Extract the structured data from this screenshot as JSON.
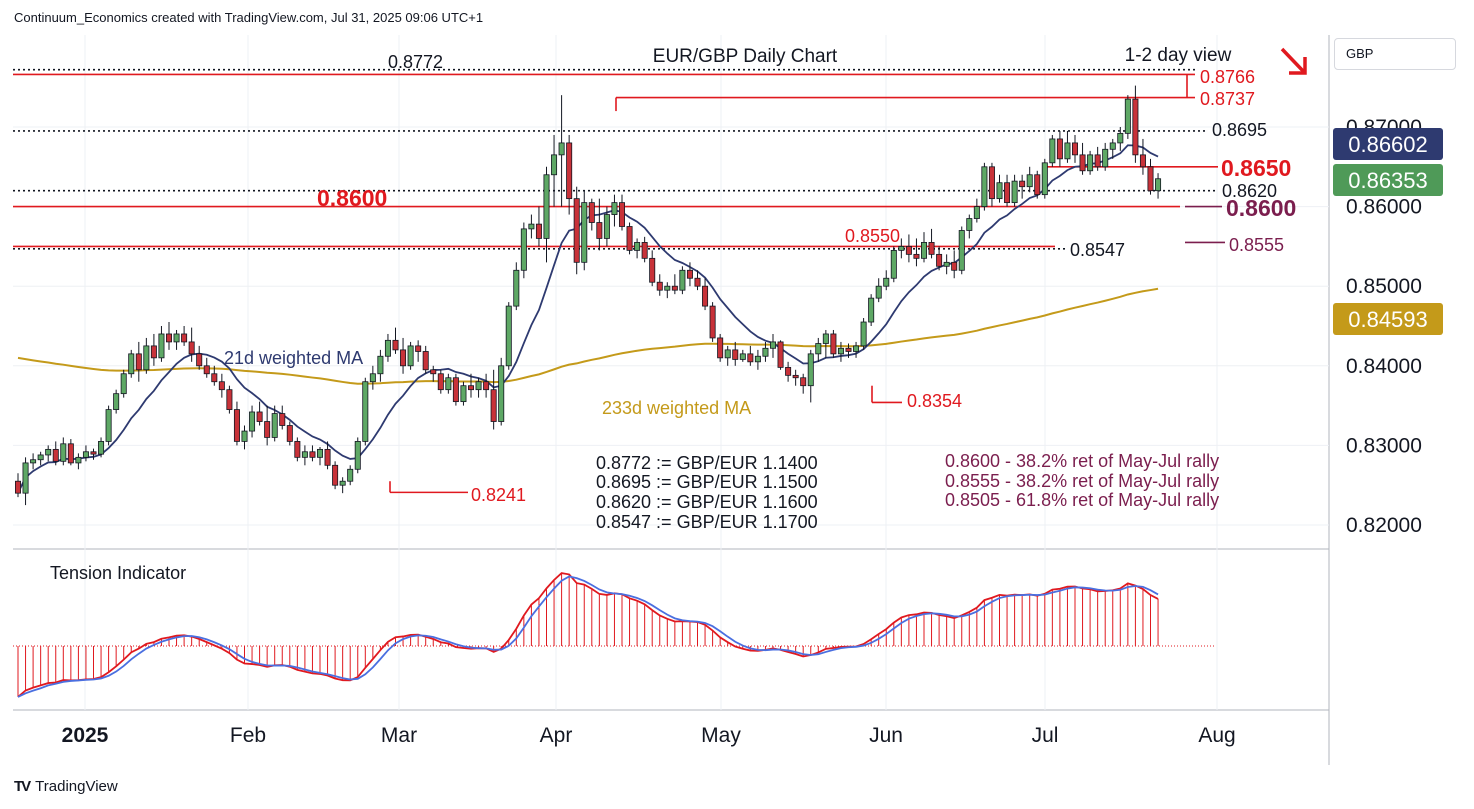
{
  "header": {
    "text": "Continuum_Economics created with TradingView.com, Jul 31, 2025 09:06 UTC+1"
  },
  "footer": {
    "logo": "TV",
    "brand": "TradingView"
  },
  "currency_label": "GBP",
  "chart_data": {
    "type": "candlestick",
    "title": "EUR/GBP Daily Chart",
    "subtitle": "1-2 day view",
    "view_direction": "down",
    "x_tick_labels": [
      "2025",
      "Feb",
      "Mar",
      "Apr",
      "May",
      "Jun",
      "Jul",
      "Aug"
    ],
    "y_tick_labels": [
      "0.87000",
      "0.86000",
      "0.85000",
      "0.84000",
      "0.83000",
      "0.82000"
    ],
    "ylim": [
      0.8175,
      0.879
    ],
    "price_badges": [
      {
        "value": "0.86602",
        "color": "#2e3a70"
      },
      {
        "value": "0.86353",
        "color": "#4f9a58"
      },
      {
        "value": "0.84593",
        "color": "#c49a1a"
      }
    ],
    "horizontal_levels": [
      {
        "value": 0.8772,
        "label": "0.8772",
        "style": "dotted",
        "color": "#131722"
      },
      {
        "value": 0.8766,
        "label": "0.8766",
        "style": "solid",
        "color": "#e0191f"
      },
      {
        "value": 0.8737,
        "label": "0.8737",
        "style": "solid",
        "color": "#e0191f"
      },
      {
        "value": 0.8695,
        "label": "0.8695",
        "style": "dotted",
        "color": "#131722"
      },
      {
        "value": 0.865,
        "label": "0.8650",
        "style": "solid",
        "color": "#e0191f"
      },
      {
        "value": 0.862,
        "label": "0.8620",
        "style": "dotted",
        "color": "#131722"
      },
      {
        "value": 0.86,
        "label": "0.8600",
        "style": "solid",
        "color": "#e0191f"
      },
      {
        "value": 0.855,
        "label": "0.8550",
        "style": "solid",
        "color": "#e0191f"
      },
      {
        "value": 0.8547,
        "label": "0.8547",
        "style": "dotted",
        "color": "#131722"
      },
      {
        "value": 0.8555,
        "label": "0.8555",
        "style": "solid",
        "color": "#7b1e4e"
      },
      {
        "value": 0.8354,
        "label": "0.8354",
        "style": "solid",
        "color": "#e0191f"
      },
      {
        "value": 0.8241,
        "label": "0.8241",
        "style": "solid",
        "color": "#e0191f"
      }
    ],
    "series": [
      {
        "name": "21d weighted MA",
        "color": "#2e3a70"
      },
      {
        "name": "233d weighted MA",
        "color": "#c49a1a"
      }
    ],
    "conversion_notes": [
      "0.8772 := GBP/EUR 1.1400",
      "0.8695 := GBP/EUR 1.1500",
      "0.8620 := GBP/EUR 1.1600",
      "0.8547 := GBP/EUR 1.1700"
    ],
    "retracement_notes": [
      "0.8600 - 38.2% ret of May-Jul rally",
      "0.8555 - 38.2% ret of May-Jul rally",
      "0.8505 - 61.8% ret of May-Jul rally"
    ],
    "indicator": {
      "name": "Tension Indicator"
    },
    "candles": [
      [
        0.8255,
        0.8265,
        0.8235,
        0.824
      ],
      [
        0.824,
        0.8285,
        0.8225,
        0.8278
      ],
      [
        0.8278,
        0.829,
        0.827,
        0.8282
      ],
      [
        0.8282,
        0.8292,
        0.8275,
        0.8288
      ],
      [
        0.8288,
        0.83,
        0.828,
        0.8295
      ],
      [
        0.8295,
        0.8305,
        0.8275,
        0.828
      ],
      [
        0.828,
        0.831,
        0.8275,
        0.8302
      ],
      [
        0.8302,
        0.8308,
        0.8275,
        0.8278
      ],
      [
        0.8278,
        0.829,
        0.827,
        0.8285
      ],
      [
        0.8285,
        0.83,
        0.828,
        0.8292
      ],
      [
        0.8292,
        0.8296,
        0.8282,
        0.8289
      ],
      [
        0.8289,
        0.831,
        0.8285,
        0.8305
      ],
      [
        0.8305,
        0.835,
        0.83,
        0.8345
      ],
      [
        0.8345,
        0.837,
        0.834,
        0.8365
      ],
      [
        0.8365,
        0.8395,
        0.836,
        0.839
      ],
      [
        0.839,
        0.842,
        0.8385,
        0.8415
      ],
      [
        0.8415,
        0.843,
        0.838,
        0.8395
      ],
      [
        0.8395,
        0.8435,
        0.839,
        0.8425
      ],
      [
        0.8425,
        0.844,
        0.84,
        0.841
      ],
      [
        0.841,
        0.845,
        0.8405,
        0.844
      ],
      [
        0.844,
        0.8455,
        0.842,
        0.843
      ],
      [
        0.843,
        0.8445,
        0.842,
        0.844
      ],
      [
        0.844,
        0.845,
        0.8425,
        0.843
      ],
      [
        0.843,
        0.8448,
        0.8405,
        0.8415
      ],
      [
        0.8415,
        0.8425,
        0.8395,
        0.84
      ],
      [
        0.84,
        0.841,
        0.8385,
        0.839
      ],
      [
        0.839,
        0.84,
        0.8375,
        0.838
      ],
      [
        0.838,
        0.839,
        0.836,
        0.837
      ],
      [
        0.837,
        0.8375,
        0.834,
        0.8345
      ],
      [
        0.8345,
        0.8355,
        0.83,
        0.8305
      ],
      [
        0.8305,
        0.8325,
        0.8295,
        0.8318
      ],
      [
        0.8318,
        0.835,
        0.831,
        0.8342
      ],
      [
        0.8342,
        0.8355,
        0.8325,
        0.833
      ],
      [
        0.833,
        0.835,
        0.83,
        0.831
      ],
      [
        0.831,
        0.835,
        0.8305,
        0.834
      ],
      [
        0.834,
        0.835,
        0.832,
        0.8325
      ],
      [
        0.8325,
        0.833,
        0.83,
        0.8305
      ],
      [
        0.8305,
        0.831,
        0.828,
        0.8285
      ],
      [
        0.8285,
        0.83,
        0.8275,
        0.8292
      ],
      [
        0.8292,
        0.83,
        0.828,
        0.8285
      ],
      [
        0.8285,
        0.8298,
        0.8275,
        0.8295
      ],
      [
        0.8295,
        0.8305,
        0.827,
        0.8275
      ],
      [
        0.8275,
        0.828,
        0.8245,
        0.825
      ],
      [
        0.825,
        0.826,
        0.824,
        0.8255
      ],
      [
        0.8255,
        0.8275,
        0.825,
        0.827
      ],
      [
        0.827,
        0.831,
        0.8265,
        0.8305
      ],
      [
        0.8305,
        0.8385,
        0.83,
        0.838
      ],
      [
        0.838,
        0.84,
        0.837,
        0.839
      ],
      [
        0.839,
        0.842,
        0.838,
        0.8412
      ],
      [
        0.8412,
        0.844,
        0.8405,
        0.8432
      ],
      [
        0.8432,
        0.8448,
        0.8415,
        0.842
      ],
      [
        0.842,
        0.8435,
        0.839,
        0.84
      ],
      [
        0.84,
        0.843,
        0.8395,
        0.8425
      ],
      [
        0.8425,
        0.8432,
        0.8405,
        0.8418
      ],
      [
        0.8418,
        0.8425,
        0.839,
        0.8395
      ],
      [
        0.8395,
        0.84,
        0.838,
        0.839
      ],
      [
        0.839,
        0.8395,
        0.8365,
        0.837
      ],
      [
        0.837,
        0.839,
        0.8365,
        0.8385
      ],
      [
        0.8385,
        0.839,
        0.835,
        0.8355
      ],
      [
        0.8355,
        0.838,
        0.835,
        0.8375
      ],
      [
        0.8375,
        0.839,
        0.836,
        0.837
      ],
      [
        0.837,
        0.8385,
        0.836,
        0.838
      ],
      [
        0.838,
        0.839,
        0.836,
        0.837
      ],
      [
        0.837,
        0.8395,
        0.832,
        0.833
      ],
      [
        0.833,
        0.841,
        0.8325,
        0.84
      ],
      [
        0.84,
        0.848,
        0.8395,
        0.8475
      ],
      [
        0.8475,
        0.853,
        0.847,
        0.852
      ],
      [
        0.852,
        0.858,
        0.851,
        0.8572
      ],
      [
        0.8572,
        0.859,
        0.856,
        0.8578
      ],
      [
        0.8578,
        0.86,
        0.855,
        0.856
      ],
      [
        0.856,
        0.865,
        0.853,
        0.864
      ],
      [
        0.864,
        0.869,
        0.86,
        0.8665
      ],
      [
        0.8665,
        0.874,
        0.86,
        0.868
      ],
      [
        0.868,
        0.869,
        0.859,
        0.861
      ],
      [
        0.861,
        0.8625,
        0.8515,
        0.853
      ],
      [
        0.853,
        0.862,
        0.852,
        0.8605
      ],
      [
        0.8605,
        0.861,
        0.857,
        0.858
      ],
      [
        0.858,
        0.861,
        0.8545,
        0.856
      ],
      [
        0.856,
        0.86,
        0.855,
        0.859
      ],
      [
        0.859,
        0.8615,
        0.8575,
        0.8605
      ],
      [
        0.8605,
        0.8615,
        0.857,
        0.8575
      ],
      [
        0.8575,
        0.858,
        0.854,
        0.8545
      ],
      [
        0.8545,
        0.856,
        0.8535,
        0.8555
      ],
      [
        0.8555,
        0.8562,
        0.853,
        0.8535
      ],
      [
        0.8535,
        0.8545,
        0.85,
        0.8505
      ],
      [
        0.8505,
        0.8515,
        0.8488,
        0.8495
      ],
      [
        0.8495,
        0.8505,
        0.8485,
        0.85
      ],
      [
        0.85,
        0.8515,
        0.849,
        0.8495
      ],
      [
        0.8495,
        0.8525,
        0.849,
        0.852
      ],
      [
        0.852,
        0.853,
        0.85,
        0.851
      ],
      [
        0.851,
        0.852,
        0.8495,
        0.85
      ],
      [
        0.85,
        0.851,
        0.847,
        0.8475
      ],
      [
        0.8475,
        0.848,
        0.843,
        0.8435
      ],
      [
        0.8435,
        0.844,
        0.8405,
        0.841
      ],
      [
        0.841,
        0.8425,
        0.84,
        0.842
      ],
      [
        0.842,
        0.843,
        0.84,
        0.8408
      ],
      [
        0.8408,
        0.842,
        0.8405,
        0.8415
      ],
      [
        0.8415,
        0.8425,
        0.84,
        0.8405
      ],
      [
        0.8405,
        0.842,
        0.8395,
        0.8412
      ],
      [
        0.8412,
        0.843,
        0.8405,
        0.8422
      ],
      [
        0.8422,
        0.844,
        0.841,
        0.843
      ],
      [
        0.843,
        0.8432,
        0.8395,
        0.8398
      ],
      [
        0.8398,
        0.8405,
        0.838,
        0.8388
      ],
      [
        0.8388,
        0.8395,
        0.8375,
        0.8385
      ],
      [
        0.8385,
        0.839,
        0.8365,
        0.8375
      ],
      [
        0.8375,
        0.842,
        0.8354,
        0.8415
      ],
      [
        0.8415,
        0.8435,
        0.8405,
        0.8428
      ],
      [
        0.8428,
        0.8445,
        0.841,
        0.844
      ],
      [
        0.844,
        0.8445,
        0.841,
        0.8415
      ],
      [
        0.8415,
        0.843,
        0.8405,
        0.8422
      ],
      [
        0.8422,
        0.8428,
        0.841,
        0.8418
      ],
      [
        0.8418,
        0.843,
        0.841,
        0.8425
      ],
      [
        0.8425,
        0.846,
        0.842,
        0.8455
      ],
      [
        0.8455,
        0.849,
        0.845,
        0.8485
      ],
      [
        0.8485,
        0.851,
        0.848,
        0.85
      ],
      [
        0.85,
        0.852,
        0.8495,
        0.851
      ],
      [
        0.851,
        0.855,
        0.8505,
        0.8545
      ],
      [
        0.8545,
        0.856,
        0.8535,
        0.855
      ],
      [
        0.855,
        0.8565,
        0.853,
        0.854
      ],
      [
        0.854,
        0.856,
        0.8525,
        0.8535
      ],
      [
        0.8535,
        0.8568,
        0.853,
        0.8555
      ],
      [
        0.8555,
        0.8572,
        0.8535,
        0.854
      ],
      [
        0.854,
        0.855,
        0.852,
        0.8525
      ],
      [
        0.8525,
        0.854,
        0.8515,
        0.853
      ],
      [
        0.853,
        0.8545,
        0.851,
        0.852
      ],
      [
        0.852,
        0.8575,
        0.8515,
        0.857
      ],
      [
        0.857,
        0.859,
        0.856,
        0.8585
      ],
      [
        0.8585,
        0.861,
        0.858,
        0.86
      ],
      [
        0.86,
        0.8655,
        0.8595,
        0.865
      ],
      [
        0.865,
        0.8655,
        0.86,
        0.861
      ],
      [
        0.861,
        0.864,
        0.8605,
        0.863
      ],
      [
        0.863,
        0.864,
        0.86,
        0.8605
      ],
      [
        0.8605,
        0.864,
        0.86,
        0.8632
      ],
      [
        0.8632,
        0.864,
        0.861,
        0.8625
      ],
      [
        0.8625,
        0.865,
        0.8618,
        0.864
      ],
      [
        0.864,
        0.8645,
        0.861,
        0.8615
      ],
      [
        0.8615,
        0.866,
        0.861,
        0.8655
      ],
      [
        0.8655,
        0.869,
        0.865,
        0.8685
      ],
      [
        0.8685,
        0.8695,
        0.865,
        0.866
      ],
      [
        0.866,
        0.8695,
        0.8655,
        0.868
      ],
      [
        0.868,
        0.869,
        0.8655,
        0.8665
      ],
      [
        0.8665,
        0.868,
        0.864,
        0.8645
      ],
      [
        0.8645,
        0.867,
        0.864,
        0.8665
      ],
      [
        0.8665,
        0.8675,
        0.8645,
        0.865
      ],
      [
        0.865,
        0.868,
        0.8645,
        0.8672
      ],
      [
        0.8672,
        0.8685,
        0.866,
        0.868
      ],
      [
        0.868,
        0.87,
        0.867,
        0.8692
      ],
      [
        0.8692,
        0.874,
        0.8685,
        0.8735
      ],
      [
        0.8735,
        0.8752,
        0.8655,
        0.8665
      ],
      [
        0.8665,
        0.8685,
        0.864,
        0.865
      ],
      [
        0.865,
        0.866,
        0.8615,
        0.862
      ],
      [
        0.862,
        0.8642,
        0.861,
        0.8635
      ]
    ]
  }
}
